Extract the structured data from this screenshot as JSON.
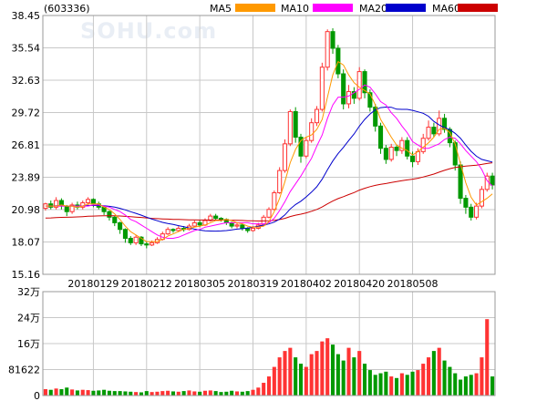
{
  "stock_code": "(603336)",
  "watermark": "SOHU.com",
  "legend": [
    {
      "label": "MA5",
      "color": "#ff9900"
    },
    {
      "label": "MA10",
      "color": "#ff00ff"
    },
    {
      "label": "MA20",
      "color": "#0000cc"
    },
    {
      "label": "MA60",
      "color": "#cc0000"
    }
  ],
  "colors": {
    "up": "#ff3333",
    "down": "#009900",
    "grid": "#c8c8c8",
    "frame": "#999999"
  },
  "chart_data": {
    "type": "candlestick",
    "price_axis": {
      "ticks": [
        "38.45",
        "35.54",
        "32.63",
        "29.72",
        "26.81",
        "23.89",
        "20.98",
        "18.07",
        "15.16"
      ],
      "ylim": [
        15.16,
        38.45
      ]
    },
    "volume_axis": {
      "ticks": [
        "32万",
        "24万",
        "16万",
        "81622",
        "0"
      ],
      "ylim": [
        0,
        326488
      ]
    },
    "date_labels": [
      {
        "label": "20180129",
        "index": 9
      },
      {
        "label": "20180212",
        "index": 19
      },
      {
        "label": "20180305",
        "index": 29
      },
      {
        "label": "20180319",
        "index": 39
      },
      {
        "label": "20180402",
        "index": 49
      },
      {
        "label": "20180420",
        "index": 59
      },
      {
        "label": "20180508",
        "index": 69
      }
    ],
    "candles": [
      [
        21.1,
        21.5,
        21.6,
        20.9
      ],
      [
        21.5,
        21.2,
        21.8,
        21.0
      ],
      [
        21.2,
        21.8,
        22.1,
        21.0
      ],
      [
        21.8,
        21.3,
        22.0,
        21.0
      ],
      [
        21.3,
        20.8,
        21.4,
        20.4
      ],
      [
        20.8,
        21.4,
        21.6,
        20.6
      ],
      [
        21.4,
        21.2,
        21.7,
        21.0
      ],
      [
        21.2,
        21.6,
        21.8,
        21.0
      ],
      [
        21.6,
        21.9,
        22.1,
        21.4
      ],
      [
        21.9,
        21.5,
        22.0,
        21.2
      ],
      [
        21.5,
        21.2,
        21.7,
        21.0
      ],
      [
        21.2,
        20.8,
        21.3,
        20.5
      ],
      [
        20.8,
        20.3,
        20.9,
        20.0
      ],
      [
        20.3,
        19.8,
        20.4,
        19.5
      ],
      [
        19.8,
        19.2,
        19.9,
        18.8
      ],
      [
        19.2,
        18.4,
        19.3,
        18.0
      ],
      [
        18.4,
        18.0,
        18.6,
        17.8
      ],
      [
        18.0,
        18.5,
        18.7,
        17.8
      ],
      [
        18.5,
        17.9,
        18.6,
        17.7
      ],
      [
        17.9,
        17.8,
        18.1,
        17.5
      ],
      [
        17.8,
        18.0,
        18.2,
        17.7
      ],
      [
        18.0,
        18.3,
        18.5,
        17.9
      ],
      [
        18.3,
        18.8,
        19.0,
        18.2
      ],
      [
        18.8,
        19.2,
        19.4,
        18.7
      ],
      [
        19.2,
        19.1,
        19.3,
        18.9
      ],
      [
        19.1,
        19.3,
        19.5,
        19.0
      ],
      [
        19.3,
        19.2,
        19.5,
        19.0
      ],
      [
        19.2,
        19.5,
        19.7,
        19.1
      ],
      [
        19.5,
        19.8,
        20.0,
        19.4
      ],
      [
        19.8,
        19.6,
        20.0,
        19.4
      ],
      [
        19.6,
        20.0,
        20.2,
        19.5
      ],
      [
        20.0,
        20.4,
        20.6,
        19.9
      ],
      [
        20.4,
        20.2,
        20.6,
        20.0
      ],
      [
        20.2,
        20.1,
        20.3,
        19.9
      ],
      [
        20.1,
        19.8,
        20.2,
        19.6
      ],
      [
        19.8,
        19.5,
        19.9,
        19.3
      ],
      [
        19.5,
        19.6,
        19.8,
        19.3
      ],
      [
        19.6,
        19.3,
        19.7,
        19.1
      ],
      [
        19.3,
        19.1,
        19.4,
        18.9
      ],
      [
        19.1,
        19.3,
        19.5,
        19.0
      ],
      [
        19.3,
        19.6,
        19.8,
        19.2
      ],
      [
        19.6,
        20.3,
        20.5,
        19.5
      ],
      [
        20.3,
        21.0,
        21.2,
        20.2
      ],
      [
        21.0,
        22.5,
        22.7,
        20.9
      ],
      [
        22.5,
        24.5,
        24.8,
        22.4
      ],
      [
        24.5,
        26.9,
        27.3,
        24.3
      ],
      [
        26.9,
        29.8,
        30.0,
        26.7
      ],
      [
        29.8,
        27.5,
        30.2,
        27.0
      ],
      [
        27.5,
        25.8,
        27.8,
        25.2
      ],
      [
        25.8,
        27.2,
        27.5,
        25.6
      ],
      [
        27.2,
        28.8,
        29.2,
        27.0
      ],
      [
        28.8,
        30.0,
        30.3,
        28.5
      ],
      [
        30.0,
        33.8,
        34.2,
        29.8
      ],
      [
        33.8,
        37.0,
        37.2,
        33.5
      ],
      [
        37.0,
        35.5,
        37.3,
        35.0
      ],
      [
        35.5,
        33.2,
        35.8,
        32.8
      ],
      [
        33.2,
        30.5,
        33.6,
        30.0
      ],
      [
        30.5,
        31.6,
        32.2,
        30.1
      ],
      [
        31.6,
        31.0,
        32.0,
        30.5
      ],
      [
        31.0,
        33.4,
        33.8,
        30.8
      ],
      [
        33.4,
        31.5,
        33.6,
        31.0
      ],
      [
        31.5,
        30.2,
        31.8,
        29.8
      ],
      [
        30.2,
        28.5,
        30.5,
        28.0
      ],
      [
        28.5,
        26.5,
        28.8,
        26.0
      ],
      [
        26.5,
        25.5,
        26.8,
        25.1
      ],
      [
        25.5,
        26.6,
        26.9,
        25.3
      ],
      [
        26.6,
        26.3,
        26.8,
        25.8
      ],
      [
        26.3,
        27.2,
        27.5,
        26.0
      ],
      [
        27.2,
        25.8,
        27.5,
        25.5
      ],
      [
        25.8,
        25.3,
        26.2,
        24.8
      ],
      [
        25.3,
        26.2,
        26.5,
        25.0
      ],
      [
        26.2,
        27.4,
        27.8,
        26.0
      ],
      [
        27.4,
        28.4,
        29.0,
        27.2
      ],
      [
        28.4,
        27.8,
        28.8,
        27.5
      ],
      [
        27.8,
        29.2,
        29.9,
        27.6
      ],
      [
        29.2,
        28.2,
        29.6,
        27.9
      ],
      [
        28.2,
        27.0,
        28.4,
        26.6
      ],
      [
        27.0,
        25.0,
        27.2,
        24.5
      ],
      [
        25.0,
        22.0,
        25.3,
        21.5
      ],
      [
        22.0,
        21.2,
        22.3,
        20.6
      ],
      [
        21.2,
        20.3,
        21.5,
        20.0
      ],
      [
        20.3,
        21.3,
        21.6,
        20.1
      ],
      [
        21.3,
        22.8,
        23.1,
        21.1
      ],
      [
        22.8,
        24.0,
        24.3,
        22.6
      ],
      [
        24.0,
        23.2,
        24.3,
        22.8
      ]
    ],
    "volume": [
      20000,
      18000,
      22000,
      20000,
      25000,
      19000,
      16000,
      18000,
      17000,
      15000,
      16000,
      18000,
      15000,
      14000,
      14000,
      13000,
      12000,
      11000,
      10000,
      14000,
      11000,
      12000,
      14000,
      15000,
      13000,
      12000,
      14000,
      16000,
      13000,
      12000,
      15000,
      16000,
      14000,
      11000,
      12000,
      15000,
      13000,
      12000,
      14000,
      18000,
      25000,
      40000,
      60000,
      90000,
      120000,
      140000,
      150000,
      120000,
      100000,
      90000,
      130000,
      140000,
      170000,
      180000,
      160000,
      130000,
      110000,
      150000,
      120000,
      140000,
      100000,
      80000,
      65000,
      70000,
      75000,
      60000,
      55000,
      70000,
      65000,
      75000,
      80000,
      100000,
      120000,
      140000,
      150000,
      110000,
      90000,
      70000,
      50000,
      60000,
      65000,
      70000,
      120000,
      240000,
      60000
    ],
    "ma": {
      "MA5": [
        21.3,
        21.3,
        21.3,
        21.4,
        21.3,
        21.3,
        21.2,
        21.3,
        21.5,
        21.5,
        21.5,
        21.2,
        21.0,
        20.6,
        20.1,
        19.5,
        19.0,
        18.7,
        18.4,
        18.1,
        18.1,
        18.1,
        18.3,
        18.6,
        18.8,
        19.0,
        19.2,
        19.3,
        19.4,
        19.5,
        19.6,
        19.8,
        20.0,
        20.0,
        20.1,
        20.0,
        19.8,
        19.7,
        19.5,
        19.4,
        19.4,
        19.5,
        19.9,
        20.8,
        22.0,
        23.5,
        25.2,
        26.4,
        27.2,
        27.5,
        27.7,
        28.2,
        29.1,
        31.1,
        33.1,
        34.3,
        34.0,
        33.1,
        32.4,
        32.0,
        31.7,
        31.4,
        30.4,
        29.1,
        28.3,
        27.5,
        26.8,
        26.5,
        26.3,
        25.9,
        26.2,
        26.6,
        27.0,
        27.5,
        28.2,
        28.3,
        27.9,
        26.9,
        25.1,
        23.4,
        22.1,
        21.4,
        21.7,
        22.0,
        22.4
      ],
      "MA10": [
        21.3,
        21.3,
        21.3,
        21.3,
        21.3,
        21.3,
        21.3,
        21.3,
        21.3,
        21.4,
        21.4,
        21.3,
        21.2,
        21.0,
        20.8,
        20.5,
        20.1,
        19.9,
        19.6,
        19.3,
        19.0,
        18.7,
        18.5,
        18.4,
        18.4,
        18.5,
        18.7,
        18.9,
        19.1,
        19.2,
        19.4,
        19.5,
        19.6,
        19.7,
        19.8,
        19.8,
        19.8,
        19.8,
        19.8,
        19.7,
        19.7,
        19.7,
        19.8,
        20.2,
        20.9,
        21.7,
        22.6,
        23.3,
        24.0,
        24.8,
        25.6,
        26.7,
        27.7,
        29.2,
        30.4,
        31.1,
        31.1,
        31.2,
        31.5,
        31.8,
        32.2,
        32.0,
        31.4,
        30.7,
        30.4,
        29.7,
        29.2,
        28.5,
        27.9,
        27.1,
        26.8,
        26.5,
        26.5,
        26.7,
        26.9,
        27.3,
        27.5,
        27.4,
        26.9,
        26.3,
        25.8,
        25.3,
        24.6,
        23.6,
        23.1
      ]
    }
  }
}
